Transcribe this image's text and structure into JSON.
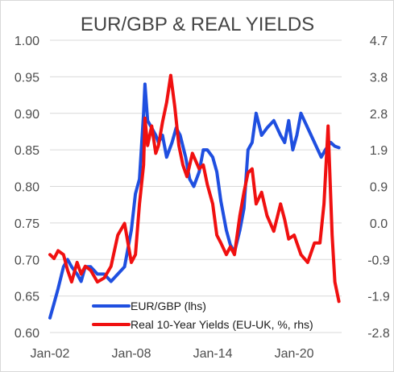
{
  "chart_data": {
    "type": "line",
    "title": "EUR/GBP & REAL YIELDS",
    "x_tick_labels": [
      "Jan-02",
      "Jan-08",
      "Jan-14",
      "Jan-20"
    ],
    "x_range": [
      2002.0,
      2023.5
    ],
    "y_left": {
      "min": 0.6,
      "max": 1.0,
      "ticks": [
        "1.00",
        "0.95",
        "0.90",
        "0.85",
        "0.80",
        "0.75",
        "0.70",
        "0.65",
        "0.60"
      ]
    },
    "y_right": {
      "min": -2.8,
      "max": 4.7,
      "ticks": [
        "4.7",
        "3.8",
        "2.8",
        "1.9",
        "0.9",
        "0.0",
        "-0.9",
        "-1.9",
        "-2.8"
      ]
    },
    "grid": true,
    "legend_position": "bottom-center",
    "series": [
      {
        "name": "EUR/GBP (lhs)",
        "axis": "left",
        "color": "#1f4fe0",
        "x": [
          2002.0,
          2002.3,
          2002.6,
          2003.0,
          2003.3,
          2003.6,
          2004.0,
          2004.3,
          2004.6,
          2005.0,
          2005.5,
          2006.0,
          2006.5,
          2007.0,
          2007.5,
          2008.0,
          2008.3,
          2008.6,
          2008.9,
          2009.0,
          2009.2,
          2009.5,
          2009.8,
          2010.0,
          2010.3,
          2010.6,
          2011.0,
          2011.3,
          2011.6,
          2012.0,
          2012.3,
          2012.6,
          2013.0,
          2013.3,
          2013.6,
          2014.0,
          2014.3,
          2014.6,
          2015.0,
          2015.3,
          2015.6,
          2016.0,
          2016.3,
          2016.6,
          2016.9,
          2017.2,
          2017.6,
          2018.0,
          2018.5,
          2019.0,
          2019.3,
          2019.6,
          2019.9,
          2020.2,
          2020.5,
          2021.0,
          2021.5,
          2022.0,
          2022.3,
          2022.7,
          2023.0,
          2023.3
        ],
        "values": [
          0.62,
          0.64,
          0.66,
          0.69,
          0.7,
          0.69,
          0.68,
          0.67,
          0.69,
          0.69,
          0.68,
          0.68,
          0.67,
          0.68,
          0.69,
          0.74,
          0.79,
          0.81,
          0.9,
          0.94,
          0.89,
          0.88,
          0.87,
          0.86,
          0.87,
          0.84,
          0.86,
          0.88,
          0.87,
          0.84,
          0.81,
          0.8,
          0.82,
          0.85,
          0.85,
          0.84,
          0.82,
          0.78,
          0.74,
          0.72,
          0.71,
          0.74,
          0.77,
          0.85,
          0.86,
          0.9,
          0.87,
          0.88,
          0.89,
          0.87,
          0.86,
          0.89,
          0.85,
          0.87,
          0.9,
          0.88,
          0.86,
          0.84,
          0.85,
          0.86,
          0.855,
          0.853
        ]
      },
      {
        "name": "Real 10-Year Yields (EU-UK, %, rhs)",
        "axis": "right",
        "color": "#f01010",
        "x": [
          2002.0,
          2002.3,
          2002.6,
          2003.0,
          2003.3,
          2003.6,
          2004.0,
          2004.3,
          2004.6,
          2005.0,
          2005.5,
          2006.0,
          2006.5,
          2007.0,
          2007.5,
          2008.0,
          2008.3,
          2008.6,
          2008.9,
          2009.0,
          2009.2,
          2009.5,
          2009.8,
          2010.0,
          2010.3,
          2010.6,
          2010.9,
          2011.2,
          2011.5,
          2011.8,
          2012.1,
          2012.5,
          2013.0,
          2013.3,
          2013.6,
          2014.0,
          2014.3,
          2014.6,
          2015.0,
          2015.3,
          2015.6,
          2016.0,
          2016.3,
          2016.6,
          2016.9,
          2017.2,
          2017.6,
          2018.0,
          2018.5,
          2019.0,
          2019.3,
          2019.6,
          2020.0,
          2020.5,
          2021.0,
          2021.5,
          2021.9,
          2022.2,
          2022.5,
          2022.8,
          2023.0,
          2023.3
        ],
        "values": [
          -0.8,
          -0.9,
          -0.7,
          -0.8,
          -1.2,
          -1.5,
          -1.0,
          -1.3,
          -1.1,
          -1.2,
          -1.5,
          -1.4,
          -1.1,
          -0.3,
          0.0,
          -1.0,
          -0.8,
          0.5,
          1.5,
          2.7,
          2.0,
          2.5,
          1.8,
          2.0,
          2.6,
          3.1,
          3.8,
          3.0,
          2.0,
          1.5,
          1.2,
          1.8,
          1.4,
          1.5,
          1.0,
          0.5,
          -0.3,
          -0.5,
          -0.8,
          -0.6,
          -0.8,
          0.2,
          0.8,
          1.3,
          1.4,
          0.5,
          0.8,
          0.2,
          -0.2,
          0.5,
          0.1,
          -0.4,
          -0.3,
          -0.8,
          -1.0,
          -0.5,
          -0.5,
          0.5,
          2.5,
          -0.3,
          -1.5,
          -2.0
        ]
      }
    ]
  }
}
